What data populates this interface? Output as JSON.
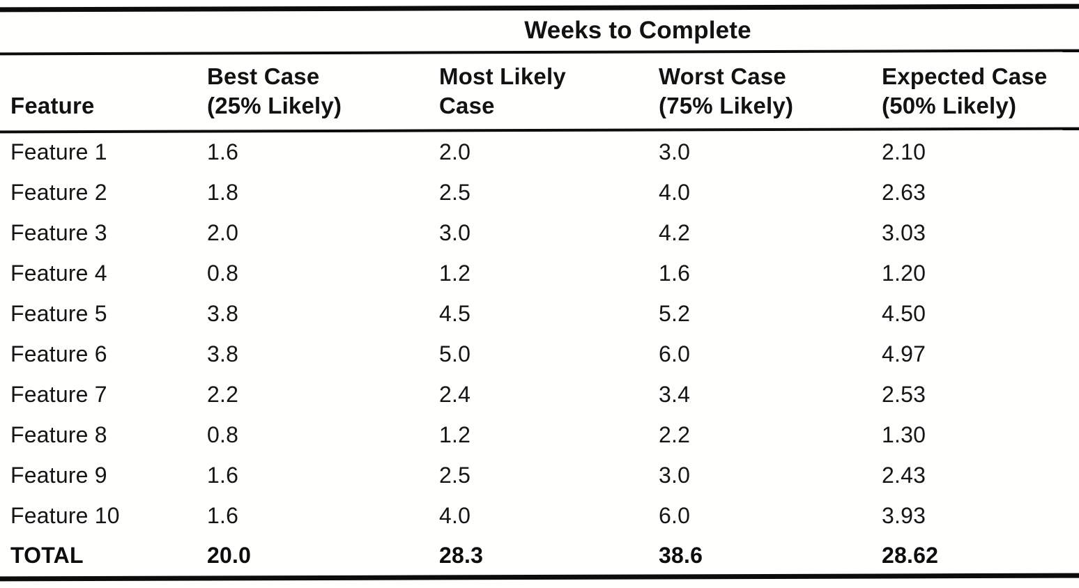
{
  "title": "Weeks to Complete",
  "table": {
    "columns": [
      {
        "label": "Feature"
      },
      {
        "line1": "Best Case",
        "line2": "(25% Likely)"
      },
      {
        "line1": "Most Likely",
        "line2": "Case"
      },
      {
        "line1": "Worst Case",
        "line2": "(75% Likely)"
      },
      {
        "line1": "Expected Case",
        "line2": "(50% Likely)"
      }
    ],
    "rows": [
      {
        "feature": "Feature 1",
        "best": "1.6",
        "likely": "2.0",
        "worst": "3.0",
        "expected": "2.10"
      },
      {
        "feature": "Feature 2",
        "best": "1.8",
        "likely": "2.5",
        "worst": "4.0",
        "expected": "2.63"
      },
      {
        "feature": "Feature 3",
        "best": "2.0",
        "likely": "3.0",
        "worst": "4.2",
        "expected": "3.03"
      },
      {
        "feature": "Feature 4",
        "best": "0.8",
        "likely": "1.2",
        "worst": "1.6",
        "expected": "1.20"
      },
      {
        "feature": "Feature 5",
        "best": "3.8",
        "likely": "4.5",
        "worst": "5.2",
        "expected": "4.50"
      },
      {
        "feature": "Feature 6",
        "best": "3.8",
        "likely": "5.0",
        "worst": "6.0",
        "expected": "4.97"
      },
      {
        "feature": "Feature 7",
        "best": "2.2",
        "likely": "2.4",
        "worst": "3.4",
        "expected": "2.53"
      },
      {
        "feature": "Feature 8",
        "best": "0.8",
        "likely": "1.2",
        "worst": "2.2",
        "expected": "1.30"
      },
      {
        "feature": "Feature 9",
        "best": "1.6",
        "likely": "2.5",
        "worst": "3.0",
        "expected": "2.43"
      },
      {
        "feature": "Feature 10",
        "best": "1.6",
        "likely": "4.0",
        "worst": "6.0",
        "expected": "3.93"
      }
    ],
    "total": {
      "feature": "TOTAL",
      "best": "20.0",
      "likely": "28.3",
      "worst": "38.6",
      "expected": "28.62"
    }
  },
  "colors": {
    "ink": "#0c0c0c",
    "paper": "#fffffe"
  }
}
